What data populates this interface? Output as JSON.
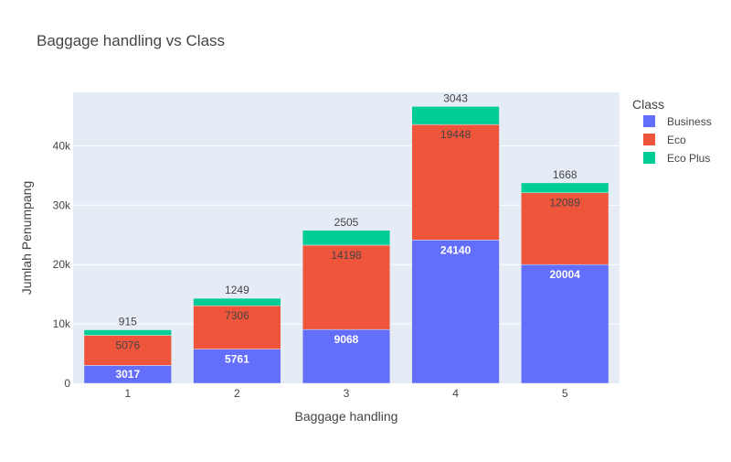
{
  "chart_data": {
    "type": "bar",
    "mode": "stacked",
    "title": "Baggage handling vs Class",
    "xlabel": "Baggage handling",
    "ylabel": "Jumlah Penumpang",
    "categories": [
      "1",
      "2",
      "3",
      "4",
      "5"
    ],
    "series": [
      {
        "name": "Business",
        "color": "#636efa",
        "values": [
          3017,
          5761,
          9068,
          24140,
          20004
        ]
      },
      {
        "name": "Eco",
        "color": "#ef553b",
        "values": [
          5076,
          7306,
          14198,
          19448,
          12089
        ]
      },
      {
        "name": "Eco Plus",
        "color": "#00cc96",
        "values": [
          915,
          1249,
          2505,
          3043,
          1668
        ]
      }
    ],
    "ylim": [
      0,
      49000
    ],
    "yticks": [
      0,
      10000,
      20000,
      30000,
      40000
    ],
    "ytick_labels": [
      "0",
      "10k",
      "20k",
      "30k",
      "40k"
    ],
    "legend_title": "Class",
    "legend_position": "top-right",
    "grid": true,
    "plot_bg": "#e5ecf6"
  }
}
